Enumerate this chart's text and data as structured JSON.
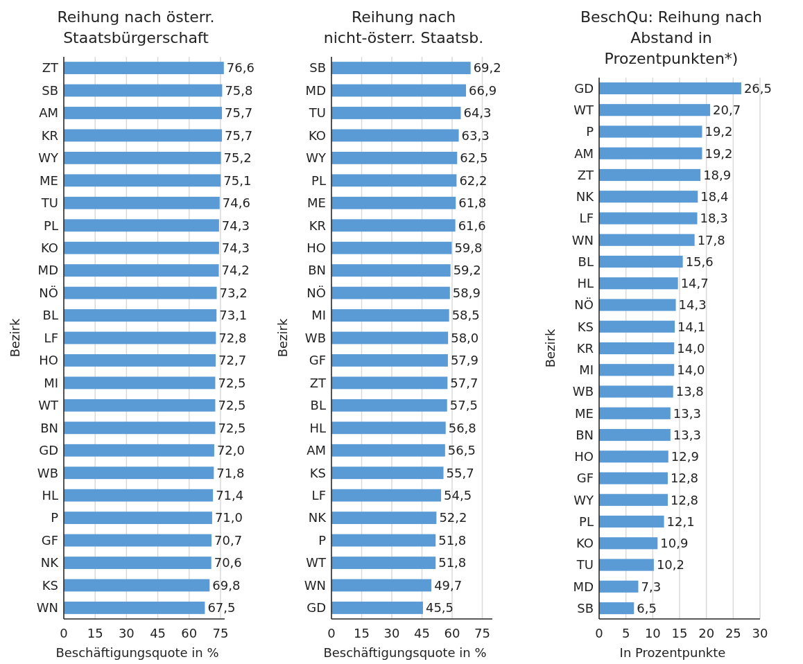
{
  "chart_data": [
    {
      "type": "bar",
      "orientation": "horizontal",
      "title": "Reihung nach österr. Staatsbürgerschaft",
      "xlabel": "Beschäftigungsquote in %",
      "ylabel": "Bezirk",
      "grid": "x",
      "xlim": [
        0,
        77
      ],
      "xticks": [
        0,
        15,
        30,
        45,
        60,
        75
      ],
      "color": "#5b9bd5",
      "categories": [
        "ZT",
        "SB",
        "AM",
        "KR",
        "WY",
        "ME",
        "TU",
        "PL",
        "KO",
        "MD",
        "NÖ",
        "BL",
        "LF",
        "HO",
        "MI",
        "WT",
        "BN",
        "GD",
        "WB",
        "HL",
        "P",
        "GF",
        "NK",
        "KS",
        "WN"
      ],
      "values": [
        76.6,
        75.8,
        75.7,
        75.7,
        75.2,
        75.1,
        74.6,
        74.3,
        74.3,
        74.2,
        73.2,
        73.1,
        72.8,
        72.7,
        72.5,
        72.5,
        72.5,
        72.0,
        71.8,
        71.4,
        71.0,
        70.7,
        70.6,
        69.8,
        67.5
      ],
      "value_labels": [
        "76,6",
        "75,8",
        "75,7",
        "75,7",
        "75,2",
        "75,1",
        "74,6",
        "74,3",
        "74,3",
        "74,2",
        "73,2",
        "73,1",
        "72,8",
        "72,7",
        "72,5",
        "72,5",
        "72,5",
        "72,0",
        "71,8",
        "71,4",
        "71,0",
        "70,7",
        "70,6",
        "69,8",
        "67,5"
      ]
    },
    {
      "type": "bar",
      "orientation": "horizontal",
      "title": "Reihung nach nicht-österr. Staatsb.",
      "xlabel": "Beschäftigungsquote in %",
      "ylabel": "Bezirk",
      "grid": "x",
      "xlim": [
        0,
        80
      ],
      "xticks": [
        0,
        15,
        30,
        45,
        60,
        75
      ],
      "color": "#5b9bd5",
      "categories": [
        "SB",
        "MD",
        "TU",
        "KO",
        "WY",
        "PL",
        "ME",
        "KR",
        "HO",
        "BN",
        "NÖ",
        "MI",
        "WB",
        "GF",
        "ZT",
        "BL",
        "HL",
        "AM",
        "KS",
        "LF",
        "NK",
        "P",
        "WT",
        "WN",
        "GD"
      ],
      "values": [
        69.2,
        66.9,
        64.3,
        63.3,
        62.5,
        62.2,
        61.8,
        61.6,
        59.8,
        59.2,
        58.9,
        58.5,
        58.0,
        57.9,
        57.7,
        57.5,
        56.8,
        56.5,
        55.7,
        54.5,
        52.2,
        51.8,
        51.8,
        49.7,
        45.5
      ],
      "value_labels": [
        "69,2",
        "66,9",
        "64,3",
        "63,3",
        "62,5",
        "62,2",
        "61,8",
        "61,6",
        "59,8",
        "59,2",
        "58,9",
        "58,5",
        "58,0",
        "57,9",
        "57,7",
        "57,5",
        "56,8",
        "56,5",
        "55,7",
        "54,5",
        "52,2",
        "51,8",
        "51,8",
        "49,7",
        "45,5"
      ]
    },
    {
      "type": "bar",
      "orientation": "horizontal",
      "title": "BeschQu: Reihung nach Abstand in Prozentpunkten*)",
      "xlabel": "In Prozentpunkte",
      "ylabel": "Bezirk",
      "grid": "x",
      "xlim": [
        0,
        30
      ],
      "xticks": [
        0,
        5,
        10,
        15,
        20,
        25,
        30
      ],
      "color": "#5b9bd5",
      "categories": [
        "GD",
        "WT",
        "P",
        "AM",
        "ZT",
        "NK",
        "LF",
        "WN",
        "BL",
        "HL",
        "NÖ",
        "KS",
        "KR",
        "MI",
        "WB",
        "ME",
        "BN",
        "HO",
        "GF",
        "WY",
        "PL",
        "KO",
        "TU",
        "MD",
        "SB"
      ],
      "values": [
        26.5,
        20.7,
        19.2,
        19.2,
        18.9,
        18.4,
        18.3,
        17.8,
        15.6,
        14.7,
        14.3,
        14.1,
        14.0,
        14.0,
        13.8,
        13.3,
        13.3,
        12.9,
        12.8,
        12.8,
        12.1,
        10.9,
        10.2,
        7.3,
        6.5
      ],
      "value_labels": [
        "26,5",
        "20,7",
        "19,2",
        "19,2",
        "18,9",
        "18,4",
        "18,3",
        "17,8",
        "15,6",
        "14,7",
        "14,3",
        "14,1",
        "14,0",
        "14,0",
        "13,8",
        "13,3",
        "13,3",
        "12,9",
        "12,8",
        "12,8",
        "12,1",
        "10,9",
        "10,2",
        "7,3",
        "6,5"
      ]
    }
  ]
}
